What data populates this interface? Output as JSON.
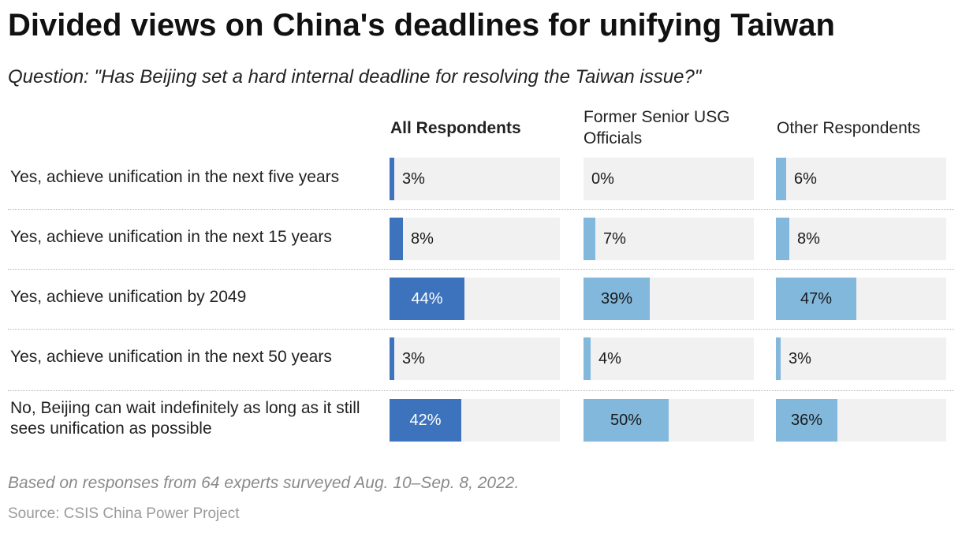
{
  "title": "Divided views on China's deadlines for unifying Taiwan",
  "subtitle": "Question: \"Has Beijing set a hard internal deadline for resolving the Taiwan issue?\"",
  "note": "Based on responses from 64 experts surveyed Aug. 10–Sep. 8, 2022.",
  "source": "Source: CSIS China Power Project",
  "colors": {
    "all_respondents": "#3d73bd",
    "former_usg": "#82b8dc",
    "other": "#82b8dc",
    "track": "#f1f1f1"
  },
  "chart_data": {
    "type": "bar",
    "orientation": "horizontal",
    "value_unit": "%",
    "xlim": [
      0,
      100
    ],
    "categories": [
      "Yes, achieve unification in the next five years",
      "Yes, achieve unification in the next 15 years",
      "Yes, achieve unification by 2049",
      "Yes, achieve unification in the next 50 years",
      "No, Beijing can wait indefinitely as long as it still sees unification as possible"
    ],
    "series": [
      {
        "name": "All Respondents",
        "values": [
          3,
          8,
          44,
          3,
          42
        ],
        "labels": [
          "3%",
          "8%",
          "44%",
          "3%",
          "42%"
        ]
      },
      {
        "name": "Former Senior USG Officials",
        "values": [
          0,
          7,
          39,
          4,
          50
        ],
        "labels": [
          "0%",
          "7%",
          "39%",
          "4%",
          "50%"
        ]
      },
      {
        "name": "Other Respondents",
        "values": [
          6,
          8,
          47,
          3,
          36
        ],
        "labels": [
          "6%",
          "8%",
          "47%",
          "3%",
          "36%"
        ]
      }
    ]
  }
}
